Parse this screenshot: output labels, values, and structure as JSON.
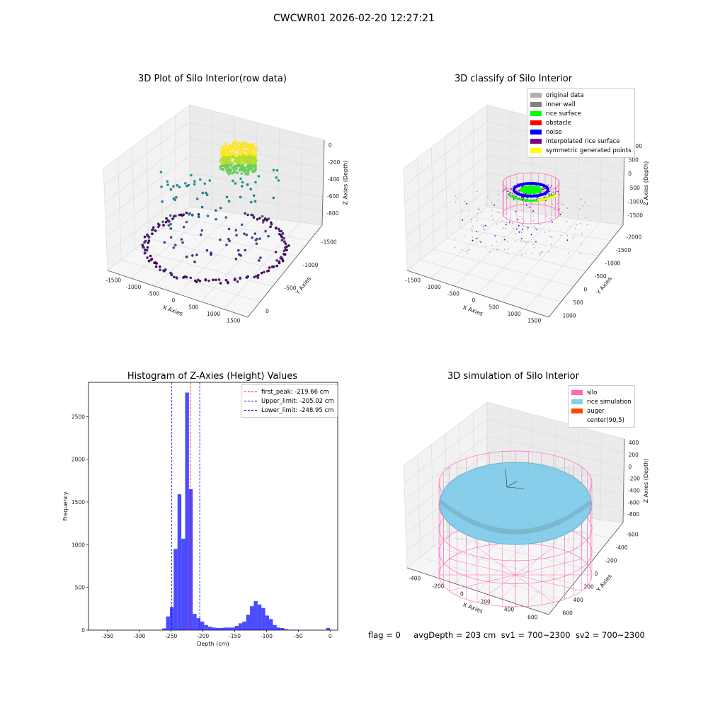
{
  "suptitle": "CWCWR01 2026-02-20 12:27:21",
  "footer": "flag = 0     avgDepth = 203 cm  sv1 = 700~2300  sv2 = 700~2300",
  "panels": {
    "raw": {
      "title": "3D Plot of Silo Interior(row data)",
      "xlabel": "X Axies",
      "ylabel": "Y Axies",
      "zlabel": "Z Axies (Depth)",
      "xticks": [
        "-1500",
        "-1000",
        "-500",
        "0",
        "500",
        "1000",
        "1500"
      ],
      "yticks": [
        "0",
        "-500",
        "-1000",
        "-1500"
      ],
      "zticks": [
        "0",
        "-200",
        "-400",
        "-600",
        "-800"
      ]
    },
    "classify": {
      "title": "3D classify of Silo Interior",
      "xlabel": "X Axies",
      "ylabel": "Y Axies",
      "zlabel": "Z Axies (Depth)",
      "xticks": [
        "-1500",
        "-1000",
        "-500",
        "0",
        "500",
        "1000",
        "1500"
      ],
      "yticks": [
        "1000",
        "500",
        "0",
        "-500",
        "-1000",
        "-1500",
        "-2000"
      ],
      "zticks": [
        "1000",
        "500",
        "0",
        "-500",
        "-1000",
        "-1500"
      ],
      "legend": [
        {
          "label": "original data",
          "color": "#b0b0b0"
        },
        {
          "label": "inner wall",
          "color": "#808080"
        },
        {
          "label": "rice surface",
          "color": "#00ff00"
        },
        {
          "label": "obstacle",
          "color": "#ff0000"
        },
        {
          "label": "noise",
          "color": "#0000ff"
        },
        {
          "label": "interpolated rice surface",
          "color": "#800080"
        },
        {
          "label": "symmetric generated points",
          "color": "#ffff00"
        }
      ]
    },
    "simulation": {
      "title": "3D simulation of Silo Interior",
      "xlabel": "X Axies",
      "ylabel": "Y Axies",
      "zlabel": "Z Axies (Depth)",
      "xticks": [
        "-400",
        "-200",
        "0",
        "200",
        "400",
        "600"
      ],
      "yticks": [
        "600",
        "400",
        "200",
        "0",
        "-200",
        "-400",
        "-600"
      ],
      "zticks": [
        "400",
        "200",
        "0",
        "-200",
        "-400",
        "-600",
        "-800"
      ],
      "legend": [
        {
          "label": "silo",
          "color": "#ff69b4"
        },
        {
          "label": "rice simulation",
          "color": "#87ceeb"
        },
        {
          "label": "auger",
          "color": "#ff4500"
        },
        {
          "label": "center(90,5)",
          "color": ""
        }
      ]
    }
  },
  "chart_data": {
    "type": "bar",
    "title": "Histogram of Z-Axies (Height) Values",
    "xlabel": "Depth (cm)",
    "ylabel": "Frequency",
    "xlim": [
      -380,
      12
    ],
    "ylim": [
      0,
      2900
    ],
    "xticks": [
      -350,
      -300,
      -250,
      -200,
      -150,
      -100,
      -50,
      0
    ],
    "yticks": [
      0,
      500,
      1000,
      1500,
      2000,
      2500
    ],
    "bar_color": "#0000ff",
    "bin_width": 6,
    "bins_start": [
      -264,
      -258,
      -252,
      -246,
      -240,
      -234,
      -228,
      -222,
      -216,
      -210,
      -204,
      -198,
      -192,
      -186,
      -180,
      -174,
      -168,
      -162,
      -156,
      -150,
      -144,
      -138,
      -132,
      -126,
      -120,
      -114,
      -108,
      -102,
      -96,
      -90,
      -84,
      -78,
      -72,
      -66,
      -60,
      -54,
      -6
    ],
    "counts": [
      20,
      160,
      270,
      950,
      1590,
      1070,
      2780,
      1650,
      190,
      140,
      100,
      60,
      40,
      30,
      25,
      25,
      30,
      30,
      30,
      50,
      80,
      100,
      180,
      280,
      340,
      300,
      260,
      170,
      130,
      60,
      30,
      25,
      10,
      5,
      5,
      5,
      25
    ],
    "lines": [
      {
        "label": "first_peak: -219.66 cm",
        "x": -219.66,
        "color": "#ff0000"
      },
      {
        "label": "Upper_limit: -205.02 cm",
        "x": -205.02,
        "color": "#0000ff"
      },
      {
        "label": "Lower_limit: -248.95 cm",
        "x": -248.95,
        "color": "#0000ff"
      }
    ]
  }
}
